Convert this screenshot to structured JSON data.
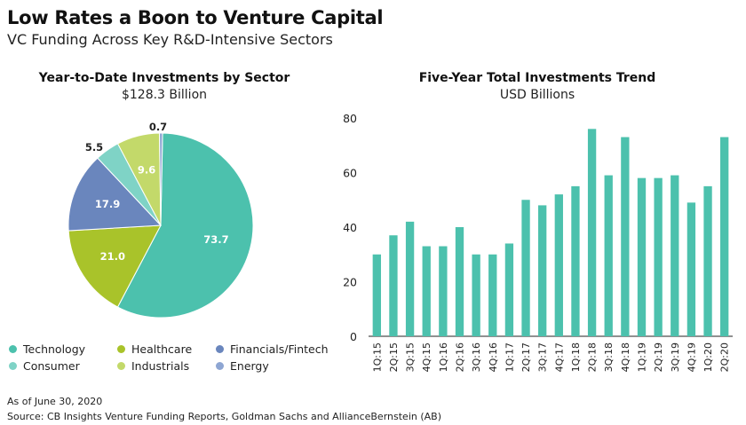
{
  "title": "Low Rates a Boon to Venture Capital",
  "subtitle": "VC Funding Across Key R&D-Intensive Sectors",
  "pie": {
    "title": "Year-to-Date Investments by Sector",
    "subtitle": "$128.3 Billion"
  },
  "bar": {
    "title": "Five-Year Total Investments Trend",
    "subtitle": "USD Billions"
  },
  "legend": [
    {
      "label": "Technology",
      "color": "#4cc1ad"
    },
    {
      "label": "Healthcare",
      "color": "#a9c32a"
    },
    {
      "label": "Financials/Fintech",
      "color": "#6a86bd"
    },
    {
      "label": "Consumer",
      "color": "#7fd3c6"
    },
    {
      "label": "Industrials",
      "color": "#c3d96a"
    },
    {
      "label": "Energy",
      "color": "#8ea6d3"
    }
  ],
  "footnote": "As of June 30, 2020",
  "source": "Source: CB Insights Venture Funding Reports, Goldman Sachs and AllianceBernstein (AB)",
  "chart_data": [
    {
      "type": "pie",
      "title": "Year-to-Date Investments by Sector",
      "subtitle": "$128.3 Billion",
      "categories": [
        "Technology",
        "Healthcare",
        "Financials/Fintech",
        "Consumer",
        "Industrials",
        "Energy"
      ],
      "values": [
        73.7,
        21.0,
        17.9,
        5.5,
        9.6,
        0.7
      ],
      "labels": [
        "73.7",
        "21.0",
        "17.9",
        "5.5",
        "9.6",
        "0.7"
      ],
      "colors": [
        "#4cc1ad",
        "#a9c32a",
        "#6a86bd",
        "#7fd3c6",
        "#c3d96a",
        "#8ea6d3"
      ],
      "legend": "bottom"
    },
    {
      "type": "bar",
      "title": "Five-Year Total Investments Trend",
      "subtitle": "USD Billions",
      "categories": [
        "1Q:15",
        "2Q:15",
        "3Q:15",
        "4Q:15",
        "1Q:16",
        "2Q:16",
        "3Q:16",
        "4Q:16",
        "1Q:17",
        "2Q:17",
        "3Q:17",
        "4Q:17",
        "1Q:18",
        "2Q:18",
        "3Q:18",
        "4Q:18",
        "1Q:19",
        "2Q:19",
        "3Q:19",
        "4Q:19",
        "1Q:20",
        "2Q:20"
      ],
      "values": [
        30,
        37,
        42,
        33,
        33,
        40,
        30,
        30,
        34,
        50,
        48,
        52,
        55,
        76,
        59,
        73,
        58,
        58,
        59,
        49,
        55,
        73
      ],
      "ylim": [
        0,
        80
      ],
      "yticks": [
        0,
        20,
        40,
        60,
        80
      ],
      "color": "#4cc1ad",
      "grid": false
    }
  ]
}
